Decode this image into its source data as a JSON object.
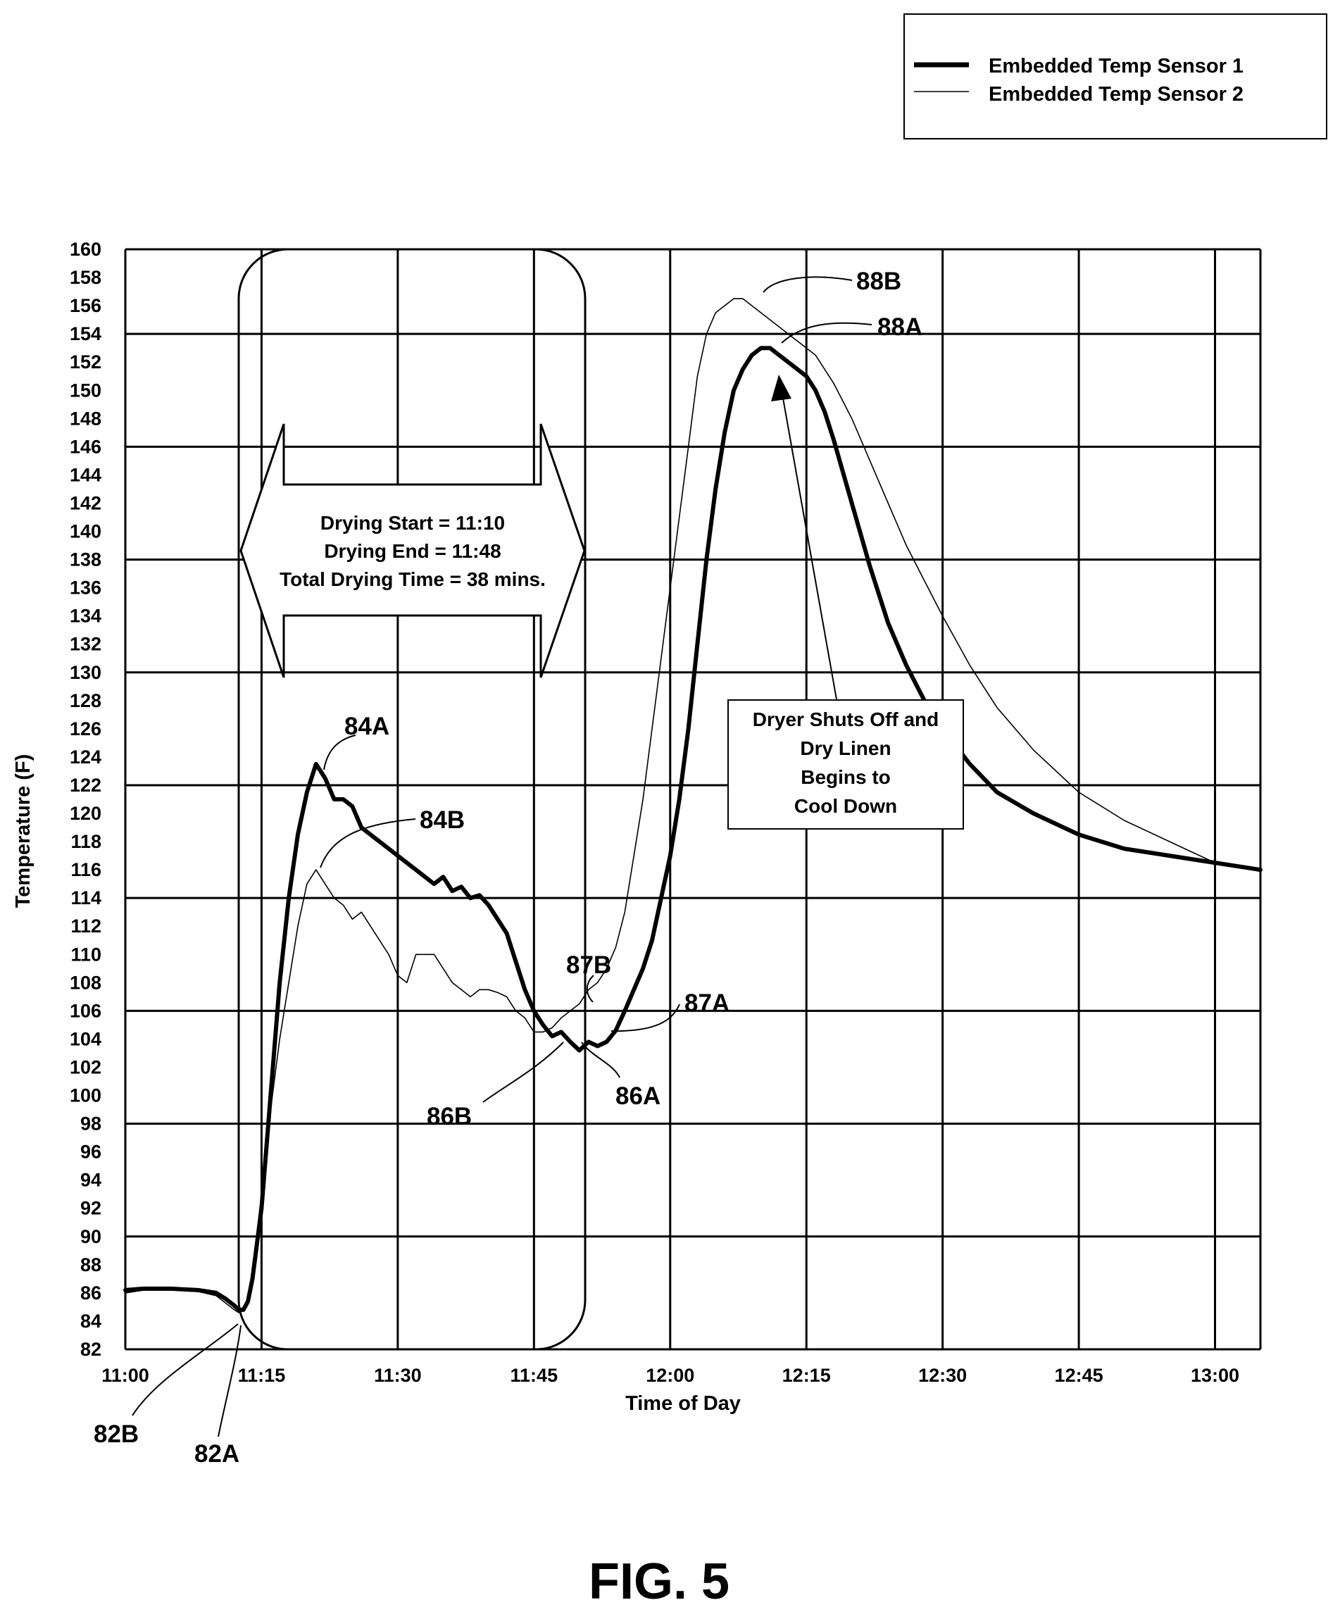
{
  "chart_data": {
    "type": "line",
    "xlabel": "Time of Day",
    "ylabel": "Temperature (F)",
    "xlim": [
      0,
      125
    ],
    "ylim": [
      82,
      160
    ],
    "x_ticks": [
      {
        "value": 0,
        "label": "11:00"
      },
      {
        "value": 15,
        "label": "11:15"
      },
      {
        "value": 30,
        "label": "11:30"
      },
      {
        "value": 45,
        "label": "11:45"
      },
      {
        "value": 60,
        "label": "12:00"
      },
      {
        "value": 75,
        "label": "12:15"
      },
      {
        "value": 90,
        "label": "12:30"
      },
      {
        "value": 105,
        "label": "12:45"
      },
      {
        "value": 120,
        "label": "13:00"
      }
    ],
    "y_ticks": [
      82,
      84,
      86,
      88,
      90,
      92,
      94,
      96,
      98,
      100,
      102,
      104,
      106,
      108,
      110,
      112,
      114,
      116,
      118,
      120,
      122,
      124,
      126,
      128,
      130,
      132,
      134,
      136,
      138,
      140,
      142,
      144,
      146,
      148,
      150,
      152,
      154,
      156,
      158,
      160
    ],
    "x_unit_note": "minutes after 11:00",
    "grid": true,
    "legend_position": "top-right",
    "series": [
      {
        "name": "Embedded Temp Sensor 1",
        "style": "thick",
        "x": [
          0,
          2,
          5,
          8,
          10,
          11,
          12,
          12.5,
          13,
          13.5,
          14,
          15,
          16,
          17,
          18,
          19,
          20,
          21,
          22,
          23,
          24,
          25,
          26,
          27,
          28,
          29,
          30,
          31,
          32,
          33,
          34,
          35,
          36,
          37,
          38,
          39,
          40,
          41,
          42,
          43,
          44,
          45,
          46,
          47,
          48,
          49,
          50,
          51,
          52,
          53,
          54,
          55,
          56,
          57,
          58,
          59,
          60,
          61,
          62,
          63,
          64,
          65,
          66,
          67,
          68,
          69,
          70,
          71,
          72,
          73,
          74,
          75,
          76,
          77,
          78,
          80,
          82,
          84,
          86,
          88,
          90,
          93,
          96,
          100,
          105,
          110,
          115,
          120,
          125
        ],
        "y": [
          86.2,
          86.3,
          86.3,
          86.2,
          86,
          85.6,
          85.1,
          84.8,
          84.8,
          85.4,
          87,
          92,
          100,
          108,
          114,
          118.5,
          121.5,
          123.5,
          122.5,
          121,
          121,
          120.5,
          119,
          118.5,
          118,
          117.5,
          117,
          116.5,
          116,
          115.5,
          115,
          115.5,
          114.5,
          114.8,
          114,
          114.2,
          113.5,
          112.5,
          111.5,
          109.5,
          107.5,
          106,
          105,
          104.2,
          104.5,
          103.8,
          103.2,
          103.8,
          103.5,
          103.8,
          104.6,
          106,
          107.5,
          109,
          111,
          114,
          117,
          121,
          126,
          132,
          138,
          143,
          147,
          150,
          151.5,
          152.5,
          153,
          153,
          152.5,
          152,
          151.5,
          151,
          150,
          148.5,
          146.5,
          142,
          137.5,
          133.5,
          130.5,
          128,
          126,
          123.5,
          121.5,
          120,
          118.5,
          117.5,
          117,
          116.5,
          116
        ]
      },
      {
        "name": "Embedded Temp Sensor 2",
        "style": "thin",
        "x": [
          0,
          2,
          5,
          8,
          10,
          11,
          12,
          12.5,
          13,
          13.5,
          14,
          15,
          16,
          17,
          18,
          19,
          20,
          21,
          22,
          23,
          24,
          25,
          26,
          27,
          28,
          29,
          30,
          31,
          32,
          33,
          34,
          35,
          36,
          37,
          38,
          39,
          40,
          41,
          42,
          43,
          44,
          45,
          46,
          47,
          48,
          49,
          50,
          51,
          52,
          53,
          54,
          55,
          56,
          57,
          58,
          59,
          60,
          61,
          62,
          63,
          64,
          65,
          66,
          67,
          68,
          69,
          70,
          71,
          72,
          73,
          74,
          75,
          76,
          77,
          78,
          80,
          82,
          84,
          86,
          88,
          90,
          93,
          96,
          100,
          105,
          110,
          115,
          120,
          125
        ],
        "y": [
          86,
          86.2,
          86.2,
          86.1,
          85.8,
          85.3,
          84.8,
          84.6,
          84.8,
          85.5,
          87.5,
          93,
          99,
          104,
          108,
          112,
          115,
          116,
          115,
          114,
          113.5,
          112.5,
          113,
          112,
          111,
          110,
          108.5,
          108,
          110,
          110,
          110,
          109,
          108,
          107.5,
          107,
          107.5,
          107.5,
          107.3,
          107,
          106,
          105.5,
          104.5,
          104.5,
          104.8,
          105.5,
          106,
          106.5,
          107.5,
          108,
          109,
          110.5,
          113,
          117,
          121,
          126,
          131,
          136,
          141,
          146,
          151,
          154,
          155.5,
          156,
          156.5,
          156.5,
          156,
          155.5,
          155,
          154.5,
          154,
          153.5,
          153,
          152.5,
          151.5,
          150.5,
          148,
          145,
          142,
          139,
          136.5,
          134,
          130.5,
          127.5,
          124.5,
          121.5,
          119.5,
          118,
          116.5,
          116
        ]
      }
    ],
    "annotations": {
      "points": [
        {
          "id": "82B",
          "text": "82B"
        },
        {
          "id": "82A",
          "text": "82A"
        },
        {
          "id": "84A",
          "text": "84A"
        },
        {
          "id": "84B",
          "text": "84B"
        },
        {
          "id": "86B",
          "text": "86B"
        },
        {
          "id": "86A",
          "text": "86A"
        },
        {
          "id": "87B",
          "text": "87B"
        },
        {
          "id": "87A",
          "text": "87A"
        },
        {
          "id": "88B",
          "text": "88B"
        },
        {
          "id": "88A",
          "text": "88A"
        }
      ],
      "drying_box": [
        "Drying Start = 11:10",
        "Drying End = 11:48",
        "Total Drying Time = 38 mins."
      ],
      "dryer_note": [
        "Dryer Shuts Off and",
        "Dry Linen",
        "Begins to",
        "Cool Down"
      ]
    },
    "figure_label": "FIG. 5"
  }
}
